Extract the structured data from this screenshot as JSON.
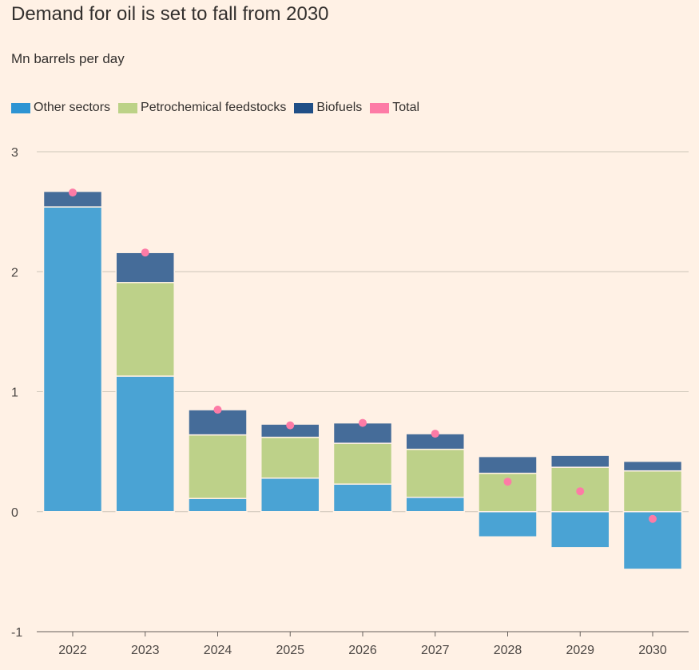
{
  "header": {
    "title": "Demand for oil is set to fall from 2030",
    "subtitle": "Mn barrels per day"
  },
  "legend": [
    {
      "label": "Other sectors",
      "color": "#2e94d3",
      "icon": "square-swatch"
    },
    {
      "label": "Petrochemical feedstocks",
      "color": "#bcd287",
      "icon": "square-swatch"
    },
    {
      "label": "Biofuels",
      "color": "#204f87",
      "icon": "square-swatch"
    },
    {
      "label": "Total",
      "color": "#fd7ba6",
      "icon": "square-swatch"
    }
  ],
  "chart_data": {
    "type": "bar",
    "stacked": true,
    "title": "Demand for oil is set to fall from 2030",
    "ylabel": "Mn barrels per day",
    "xlabel": "",
    "ylim": [
      -1,
      3
    ],
    "yticks": [
      3,
      2,
      1,
      0,
      -1
    ],
    "categories": [
      "2022",
      "2023",
      "2024",
      "2025",
      "2026",
      "2027",
      "2028",
      "2029",
      "2030"
    ],
    "series": [
      {
        "name": "Other sectors",
        "color": "#4aa3d4",
        "values": [
          2.54,
          1.13,
          0.11,
          0.28,
          0.23,
          0.12,
          -0.21,
          -0.3,
          -0.48
        ]
      },
      {
        "name": "Petrochemical feedstocks",
        "color": "#bdd189",
        "values": [
          0.0,
          0.78,
          0.53,
          0.34,
          0.34,
          0.4,
          0.32,
          0.37,
          0.34
        ]
      },
      {
        "name": "Biofuels",
        "color": "#456c99",
        "values": [
          0.13,
          0.25,
          0.21,
          0.11,
          0.17,
          0.13,
          0.14,
          0.1,
          0.08
        ]
      }
    ],
    "total": {
      "name": "Total",
      "color": "#fd7ba6",
      "values": [
        2.66,
        2.16,
        0.85,
        0.72,
        0.74,
        0.65,
        0.25,
        0.17,
        -0.06
      ]
    },
    "grid": true,
    "legend_position": "top-left"
  }
}
